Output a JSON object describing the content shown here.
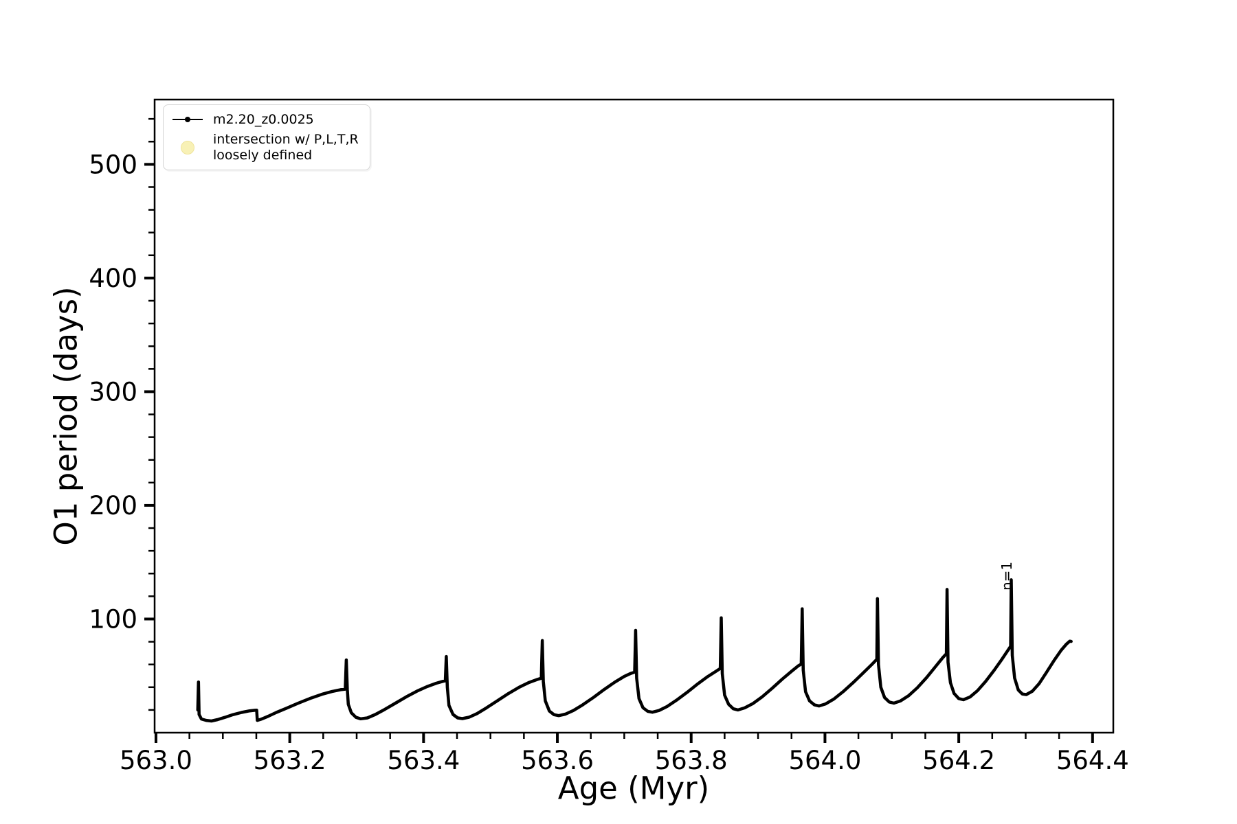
{
  "colors": {
    "line": "#000000",
    "text": "#000000",
    "background": "#ffffff",
    "legend_border": "#d4d4d4",
    "legend_circle_fill": "#f8f1b6",
    "legend_circle_edge": "#efe49c"
  },
  "legend": {
    "entries": [
      {
        "label": "m2.20_z0.0025",
        "marker": "line-dot",
        "color": "#000000"
      },
      {
        "label": "intersection w/ P,L,T,R\nloosely defined",
        "marker": "circle",
        "color": "#f8f1b6"
      }
    ]
  },
  "chart_data": {
    "type": "line",
    "title": "",
    "xlabel": "Age (Myr)",
    "ylabel": "O1 period (days)",
    "xlim": [
      562.998,
      564.431
    ],
    "ylim": [
      0,
      557
    ],
    "grid": false,
    "legend_position": "upper left",
    "x_major_ticks": [
      563.0,
      563.2,
      563.4,
      563.6,
      563.8,
      564.0,
      564.2,
      564.4
    ],
    "x_tick_labels": [
      "563.0",
      "563.2",
      "563.4",
      "563.6",
      "563.8",
      "564.0",
      "564.2",
      "564.4"
    ],
    "x_minor_tick_step": 0.05,
    "y_major_ticks": [
      100,
      200,
      300,
      400,
      500
    ],
    "y_tick_labels": [
      "100",
      "200",
      "300",
      "400",
      "500"
    ],
    "y_minor_tick_step": 20,
    "annotations": [
      {
        "text": "n=1",
        "x": 564.2785,
        "y": 137,
        "rotation": -90
      }
    ],
    "series": [
      {
        "name": "m2.20_z0.0025",
        "color": "#000000",
        "style": "line+dot-markers",
        "points": [
          [
            563.0625,
            20.0
          ],
          [
            563.0635,
            44.5
          ],
          [
            563.0645,
            16.0
          ],
          [
            563.068,
            12.0
          ],
          [
            563.075,
            10.8
          ],
          [
            563.083,
            10.3
          ],
          [
            563.092,
            11.5
          ],
          [
            563.103,
            13.5
          ],
          [
            563.115,
            15.8
          ],
          [
            563.128,
            17.8
          ],
          [
            563.14,
            19.2
          ],
          [
            563.148,
            19.7
          ],
          [
            563.1505,
            19.8
          ],
          [
            563.1515,
            10.8
          ],
          [
            563.158,
            12.0
          ],
          [
            563.168,
            14.5
          ],
          [
            563.18,
            17.8
          ],
          [
            563.195,
            21.5
          ],
          [
            563.212,
            25.8
          ],
          [
            563.23,
            30.0
          ],
          [
            563.248,
            33.8
          ],
          [
            563.263,
            36.2
          ],
          [
            563.276,
            37.8
          ],
          [
            563.283,
            38.3
          ],
          [
            563.2845,
            64.0
          ],
          [
            563.286,
            38.0
          ],
          [
            563.2875,
            25.0
          ],
          [
            563.292,
            17.5
          ],
          [
            563.299,
            13.5
          ],
          [
            563.306,
            12.2
          ],
          [
            563.316,
            13.0
          ],
          [
            563.328,
            16.0
          ],
          [
            563.342,
            20.5
          ],
          [
            563.358,
            26.0
          ],
          [
            563.374,
            31.5
          ],
          [
            563.39,
            36.5
          ],
          [
            563.405,
            40.5
          ],
          [
            563.419,
            43.5
          ],
          [
            563.429,
            45.2
          ],
          [
            563.4325,
            45.7
          ],
          [
            563.434,
            67.0
          ],
          [
            563.4355,
            40.0
          ],
          [
            563.438,
            24.0
          ],
          [
            563.444,
            16.0
          ],
          [
            563.451,
            13.0
          ],
          [
            563.458,
            12.4
          ],
          [
            563.468,
            13.6
          ],
          [
            563.48,
            16.8
          ],
          [
            563.494,
            21.8
          ],
          [
            563.51,
            28.0
          ],
          [
            563.527,
            34.5
          ],
          [
            563.543,
            40.0
          ],
          [
            563.558,
            44.3
          ],
          [
            563.57,
            46.8
          ],
          [
            563.576,
            47.9
          ],
          [
            563.5775,
            81.0
          ],
          [
            563.579,
            45.0
          ],
          [
            563.582,
            28.0
          ],
          [
            563.588,
            19.0
          ],
          [
            563.595,
            15.8
          ],
          [
            563.602,
            15.0
          ],
          [
            563.612,
            16.3
          ],
          [
            563.624,
            19.5
          ],
          [
            563.638,
            24.5
          ],
          [
            563.654,
            31.0
          ],
          [
            563.67,
            38.0
          ],
          [
            563.686,
            44.5
          ],
          [
            563.7,
            49.5
          ],
          [
            563.71,
            52.2
          ],
          [
            563.7155,
            53.2
          ],
          [
            563.717,
            90.0
          ],
          [
            563.7185,
            48.0
          ],
          [
            563.722,
            30.0
          ],
          [
            563.728,
            22.0
          ],
          [
            563.735,
            18.8
          ],
          [
            563.742,
            18.0
          ],
          [
            563.752,
            19.5
          ],
          [
            563.764,
            23.0
          ],
          [
            563.778,
            28.5
          ],
          [
            563.794,
            35.5
          ],
          [
            563.81,
            43.0
          ],
          [
            563.825,
            49.5
          ],
          [
            563.837,
            54.0
          ],
          [
            563.8435,
            56.5
          ],
          [
            563.845,
            101.0
          ],
          [
            563.8465,
            52.0
          ],
          [
            563.85,
            33.0
          ],
          [
            563.856,
            25.0
          ],
          [
            563.863,
            21.0
          ],
          [
            563.87,
            20.0
          ],
          [
            563.88,
            21.8
          ],
          [
            563.892,
            25.5
          ],
          [
            563.906,
            31.5
          ],
          [
            563.921,
            39.0
          ],
          [
            563.936,
            47.0
          ],
          [
            563.95,
            54.0
          ],
          [
            563.96,
            58.8
          ],
          [
            563.9645,
            60.3
          ],
          [
            563.966,
            109.0
          ],
          [
            563.9675,
            55.0
          ],
          [
            563.971,
            36.0
          ],
          [
            563.977,
            28.0
          ],
          [
            563.984,
            24.5
          ],
          [
            563.991,
            23.5
          ],
          [
            564.001,
            25.3
          ],
          [
            564.013,
            29.5
          ],
          [
            564.027,
            36.0
          ],
          [
            564.042,
            44.0
          ],
          [
            564.057,
            52.5
          ],
          [
            564.07,
            60.0
          ],
          [
            564.0775,
            64.5
          ],
          [
            564.0785,
            118.0
          ],
          [
            564.08,
            60.0
          ],
          [
            564.0835,
            40.0
          ],
          [
            564.089,
            31.0
          ],
          [
            564.096,
            27.0
          ],
          [
            564.103,
            26.0
          ],
          [
            564.113,
            28.0
          ],
          [
            564.125,
            32.5
          ],
          [
            564.138,
            39.5
          ],
          [
            564.152,
            48.5
          ],
          [
            564.165,
            58.0
          ],
          [
            564.176,
            66.0
          ],
          [
            564.1815,
            69.5
          ],
          [
            564.1825,
            126.0
          ],
          [
            564.184,
            62.0
          ],
          [
            564.1875,
            44.0
          ],
          [
            564.193,
            34.5
          ],
          [
            564.2,
            30.0
          ],
          [
            564.207,
            29.0
          ],
          [
            564.217,
            31.5
          ],
          [
            564.228,
            37.0
          ],
          [
            564.24,
            45.0
          ],
          [
            564.253,
            55.0
          ],
          [
            564.265,
            65.0
          ],
          [
            564.274,
            73.0
          ],
          [
            564.2775,
            76.0
          ],
          [
            564.2785,
            134.5
          ],
          [
            564.28,
            68.0
          ],
          [
            564.2835,
            48.0
          ],
          [
            564.289,
            37.5
          ],
          [
            564.295,
            34.0
          ],
          [
            564.301,
            33.5
          ],
          [
            564.31,
            36.5
          ],
          [
            564.32,
            43.0
          ],
          [
            564.331,
            53.0
          ],
          [
            564.343,
            64.0
          ],
          [
            564.353,
            72.5
          ],
          [
            564.361,
            78.0
          ],
          [
            564.366,
            80.5
          ],
          [
            564.368,
            80.3
          ]
        ]
      },
      {
        "name": "intersection w/ P,L,T,R loosely defined",
        "color": "#f8f1b6",
        "style": "circle-markers",
        "points": []
      }
    ]
  }
}
